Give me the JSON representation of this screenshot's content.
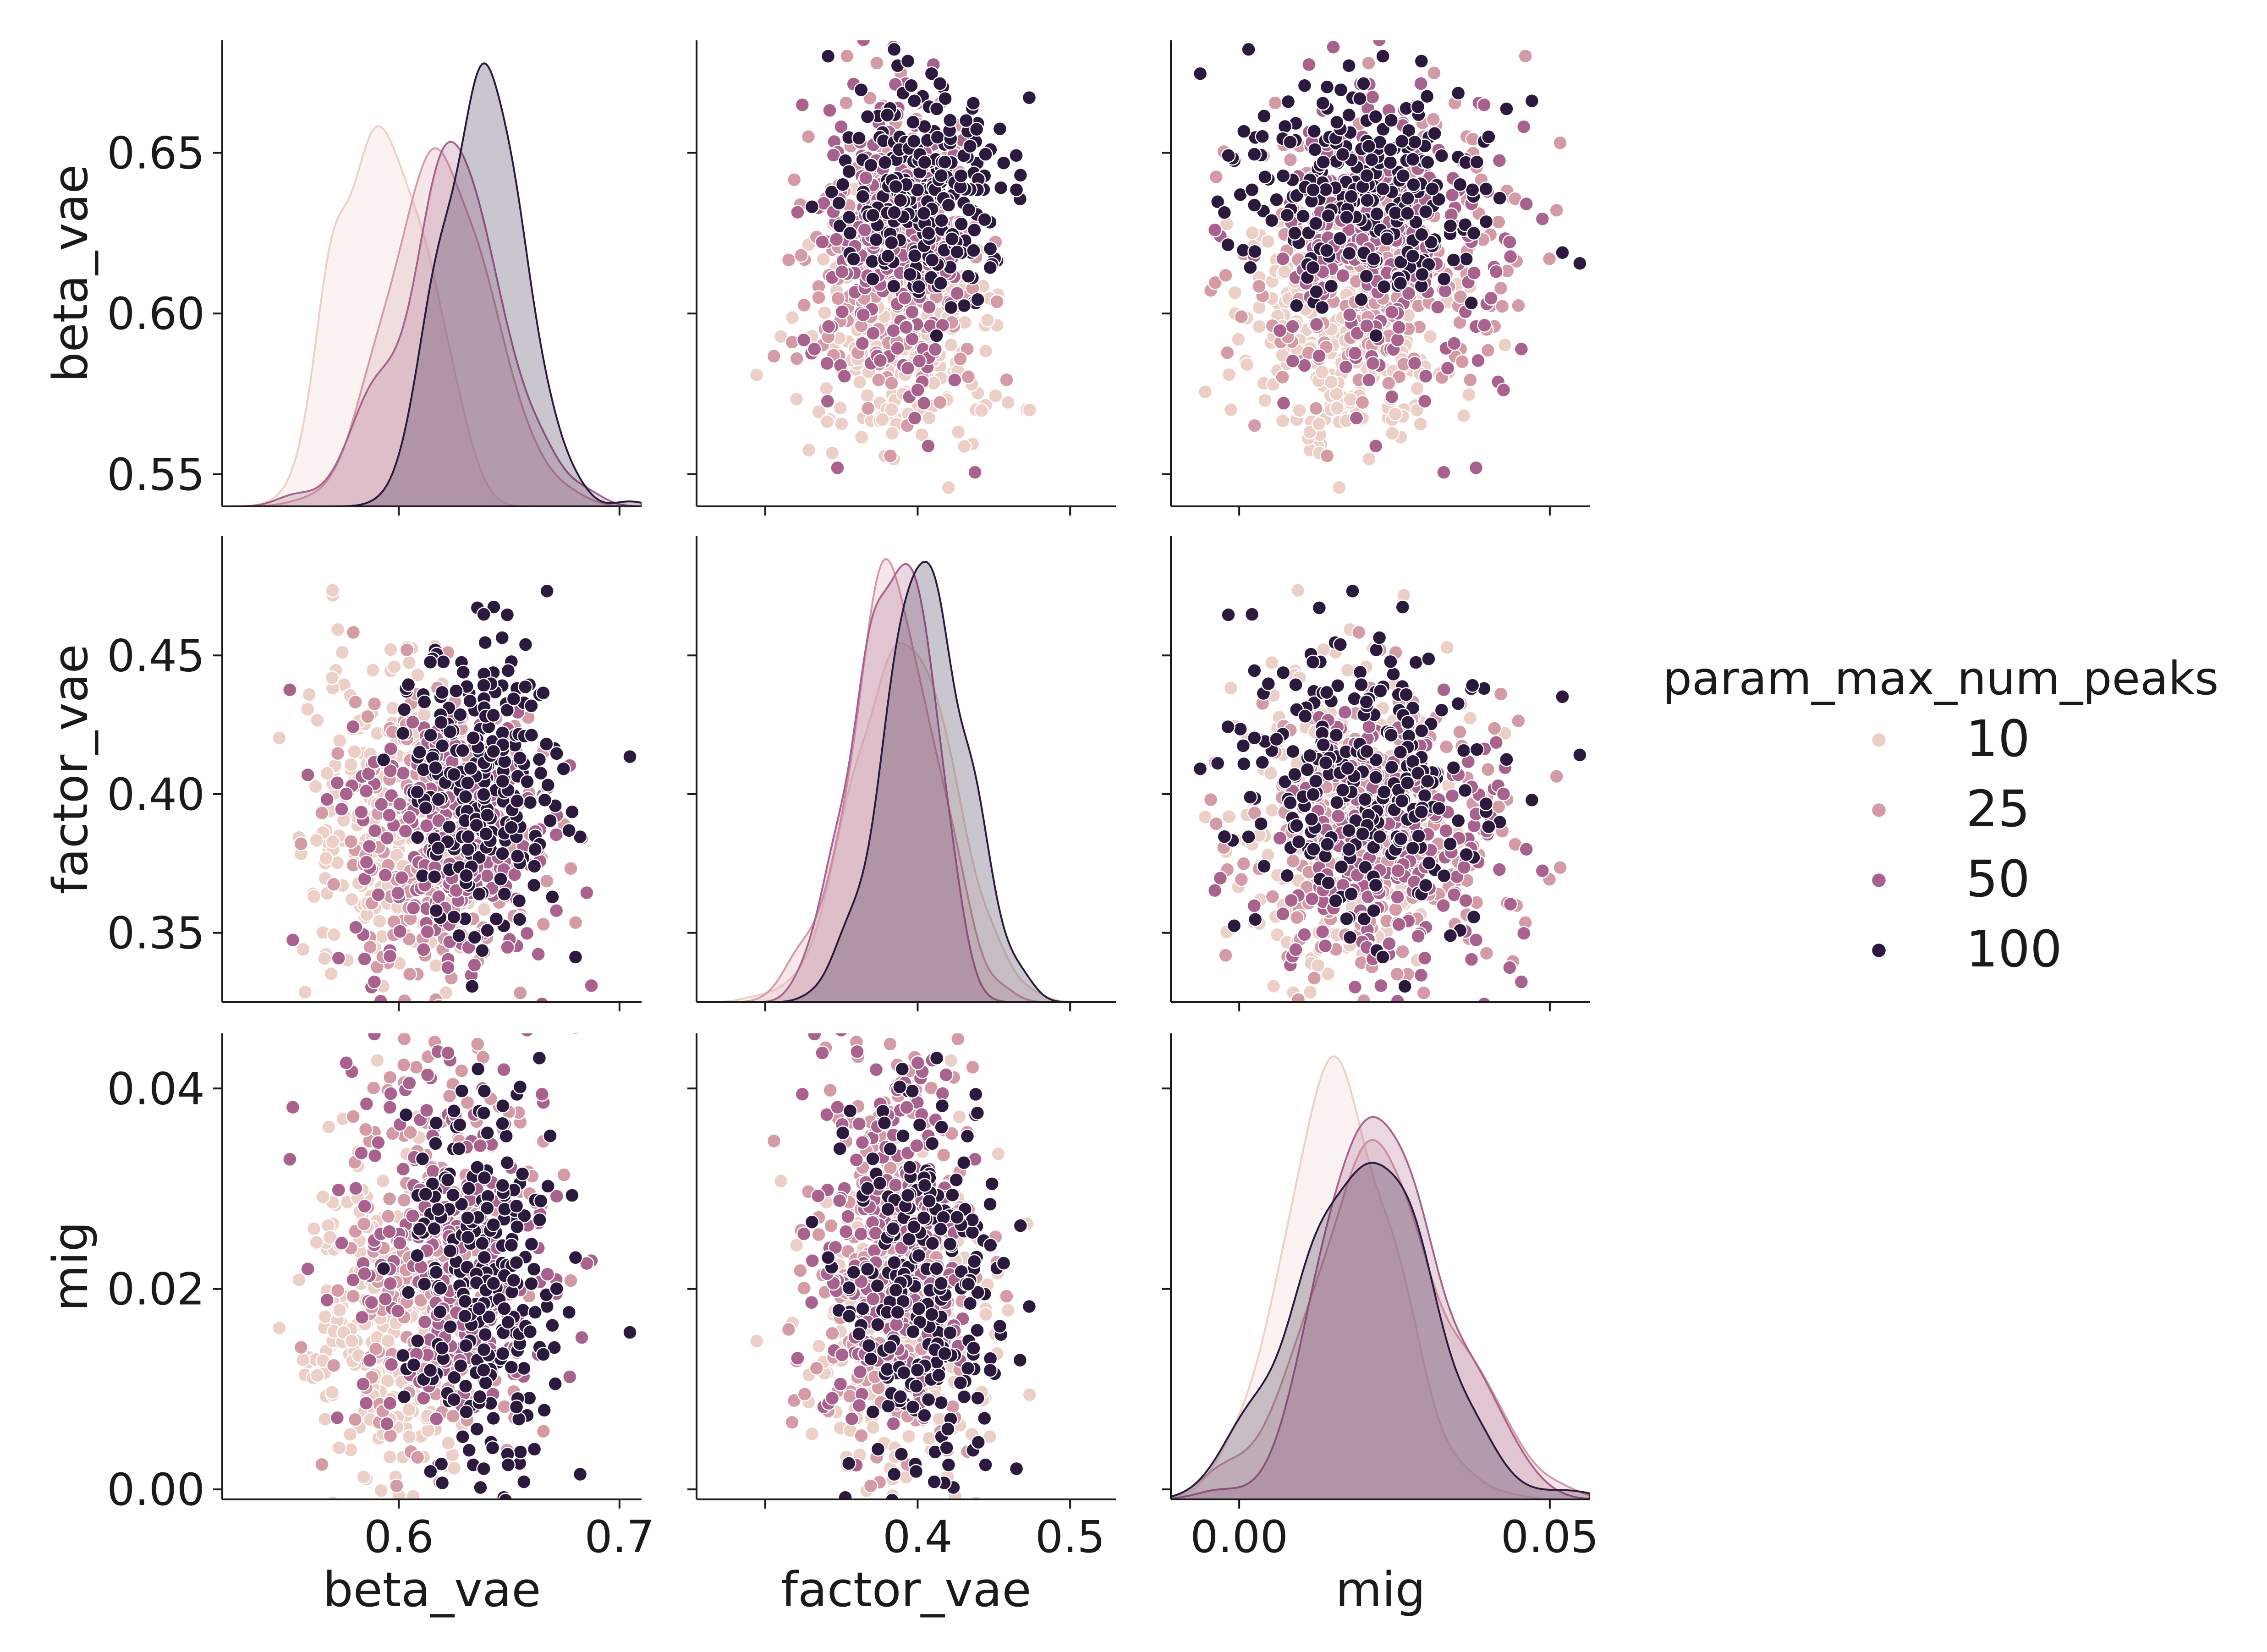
{
  "chart_data": {
    "type": "pairplot",
    "variables": [
      "beta_vae",
      "factor_vae",
      "mig"
    ],
    "hue": {
      "title": "param_max_num_peaks",
      "levels": [
        "10",
        "25",
        "50",
        "100"
      ],
      "colors": [
        "#ecd0c8",
        "#d49aa6",
        "#a9628d",
        "#2b1a3e"
      ]
    },
    "axes": {
      "beta_vae": {
        "range": [
          0.52,
          0.71
        ],
        "x_ticks": [
          0.6,
          0.7
        ],
        "x_tick_labels": [
          "0.6",
          "0.7"
        ],
        "y_ticks": [
          0.55,
          0.6,
          0.65
        ],
        "y_tick_labels": [
          "0.55",
          "0.60",
          "0.65"
        ],
        "y_range": [
          0.54,
          0.685
        ]
      },
      "factor_vae": {
        "range": [
          0.255,
          0.53
        ],
        "x_ticks": [
          0.3,
          0.4,
          0.5
        ],
        "x_tick_labels": [
          "",
          "0.4",
          "0.5"
        ],
        "y_ticks": [
          0.35,
          0.4,
          0.45
        ],
        "y_tick_labels": [
          "0.35",
          "0.40",
          "0.45"
        ],
        "y_range": [
          0.325,
          0.493
        ]
      },
      "mig": {
        "range": [
          -0.011,
          0.0565
        ],
        "x_ticks": [
          0.0,
          0.05
        ],
        "x_tick_labels": [
          "0.00",
          "0.05"
        ],
        "y_ticks": [
          0.0,
          0.02,
          0.04
        ],
        "y_tick_labels": [
          "0.00",
          "0.02",
          "0.04"
        ],
        "y_range": [
          -0.001,
          0.0455
        ]
      }
    },
    "distributions": {
      "beta_vae": {
        "10": {
          "mean": 0.592,
          "sd": 0.018,
          "n": 250
        },
        "25": {
          "mean": 0.615,
          "sd": 0.024,
          "n": 250
        },
        "50": {
          "mean": 0.625,
          "sd": 0.022,
          "n": 250
        },
        "100": {
          "mean": 0.637,
          "sd": 0.019,
          "n": 250
        }
      },
      "factor_vae": {
        "10": {
          "mean": 0.392,
          "sd": 0.03,
          "n": 250
        },
        "25": {
          "mean": 0.384,
          "sd": 0.026,
          "n": 250
        },
        "50": {
          "mean": 0.385,
          "sd": 0.025,
          "n": 250
        },
        "100": {
          "mean": 0.405,
          "sd": 0.025,
          "n": 250
        }
      },
      "mig": {
        "10": {
          "mean": 0.016,
          "sd": 0.009,
          "n": 250
        },
        "25": {
          "mean": 0.022,
          "sd": 0.01,
          "n": 250
        },
        "50": {
          "mean": 0.024,
          "sd": 0.01,
          "n": 250
        },
        "100": {
          "mean": 0.019,
          "sd": 0.01,
          "n": 250
        }
      }
    },
    "xlabel_bottom": [
      "beta_vae",
      "factor_vae",
      "mig"
    ],
    "ylabel_left": [
      "beta_vae",
      "factor_vae",
      "mig"
    ],
    "legend_position": "right"
  }
}
